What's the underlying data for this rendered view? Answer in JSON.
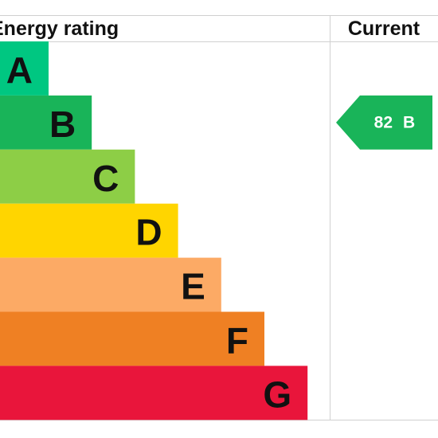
{
  "header": {
    "title": "Energy rating",
    "current_title": "Current"
  },
  "bands": [
    {
      "letter": "A",
      "color": "#00c781"
    },
    {
      "letter": "B",
      "color": "#19b459"
    },
    {
      "letter": "C",
      "color": "#8dce46"
    },
    {
      "letter": "D",
      "color": "#ffd500"
    },
    {
      "letter": "E",
      "color": "#fcaa65"
    },
    {
      "letter": "F",
      "color": "#ef8023"
    },
    {
      "letter": "G",
      "color": "#e9153b"
    }
  ],
  "current": {
    "score": 82,
    "band": "B"
  }
}
